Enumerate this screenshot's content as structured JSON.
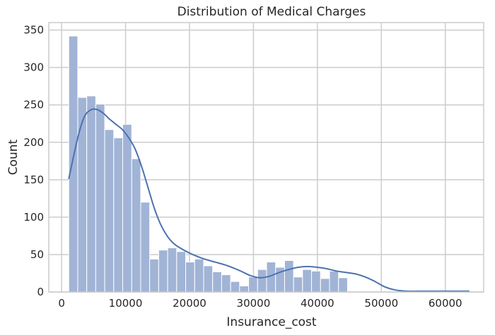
{
  "chart_data": {
    "type": "bar",
    "title": "Distribution of Medical Charges",
    "xlabel": "Insurance_cost",
    "ylabel": "Count",
    "xlim": [
      -2000,
      66000
    ],
    "ylim": [
      0,
      360
    ],
    "xticks": [
      0,
      10000,
      20000,
      30000,
      40000,
      50000,
      60000
    ],
    "yticks": [
      0,
      50,
      100,
      150,
      200,
      250,
      300,
      350
    ],
    "grid": true,
    "bins": {
      "start": 1122,
      "width": 1406,
      "counts": [
        342,
        260,
        262,
        251,
        217,
        206,
        224,
        178,
        120,
        44,
        56,
        59,
        54,
        40,
        44,
        35,
        27,
        23,
        14,
        8,
        20,
        30,
        40,
        33,
        42,
        20,
        30,
        28,
        18,
        28,
        19
      ]
    },
    "kde": {
      "x": [
        1122,
        2500,
        3500,
        4500,
        5500,
        6500,
        7500,
        8500,
        9500,
        10500,
        11500,
        12500,
        13500,
        14500,
        15500,
        16500,
        17500,
        18500,
        20000,
        22000,
        24000,
        26000,
        28000,
        29500,
        31000,
        32500,
        34000,
        35500,
        37000,
        38500,
        40000,
        41500,
        43000,
        44500,
        46000,
        47500,
        49000,
        50500,
        52000,
        54000,
        56000,
        58000,
        60000,
        62000,
        63770
      ],
      "y": [
        151,
        205,
        233,
        243,
        244,
        239,
        231,
        224,
        217,
        206,
        191,
        168,
        140,
        112,
        90,
        75,
        65,
        59,
        52,
        45,
        40,
        35,
        28,
        22,
        19,
        21,
        26,
        30,
        33,
        34,
        33,
        31,
        28,
        26,
        24,
        20,
        14,
        7,
        3,
        1,
        1,
        1,
        1,
        1,
        1
      ]
    },
    "colors": {
      "bar": "#a1b4d6",
      "bar_edge": "#ffffff",
      "kde": "#4c72b0",
      "grid": "#cccccc",
      "frame": "#cccccc"
    }
  }
}
